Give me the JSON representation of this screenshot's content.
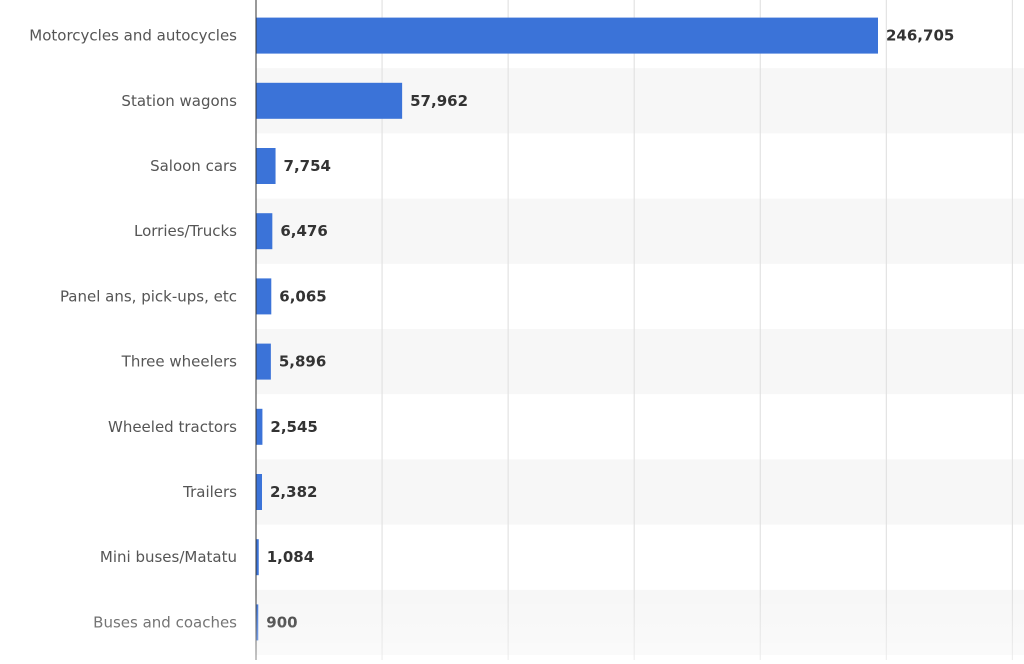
{
  "chart_data": {
    "type": "bar",
    "orientation": "horizontal",
    "title": "",
    "xlabel": "",
    "ylabel": "",
    "xlim": [
      0,
      300000
    ],
    "grid": true,
    "categories": [
      "Motorcycles and autocycles",
      "Station wagons",
      "Saloon cars",
      "Lorries/Trucks",
      "Panel ans, pick-ups, etc",
      "Three wheelers",
      "Wheeled tractors",
      "Trailers",
      "Mini buses/Matatu",
      "Buses and coaches"
    ],
    "values": [
      246705,
      57962,
      7754,
      6476,
      6065,
      5896,
      2545,
      2382,
      1084,
      900
    ],
    "value_labels": [
      "246,705",
      "57,962",
      "7,754",
      "6,476",
      "6,065",
      "5,896",
      "2,545",
      "2,382",
      "1,084",
      "900"
    ],
    "colors": {
      "bar": "#3b73d8",
      "stripe": "#f7f7f7",
      "grid": "#dedede",
      "axis": "#333333"
    }
  }
}
